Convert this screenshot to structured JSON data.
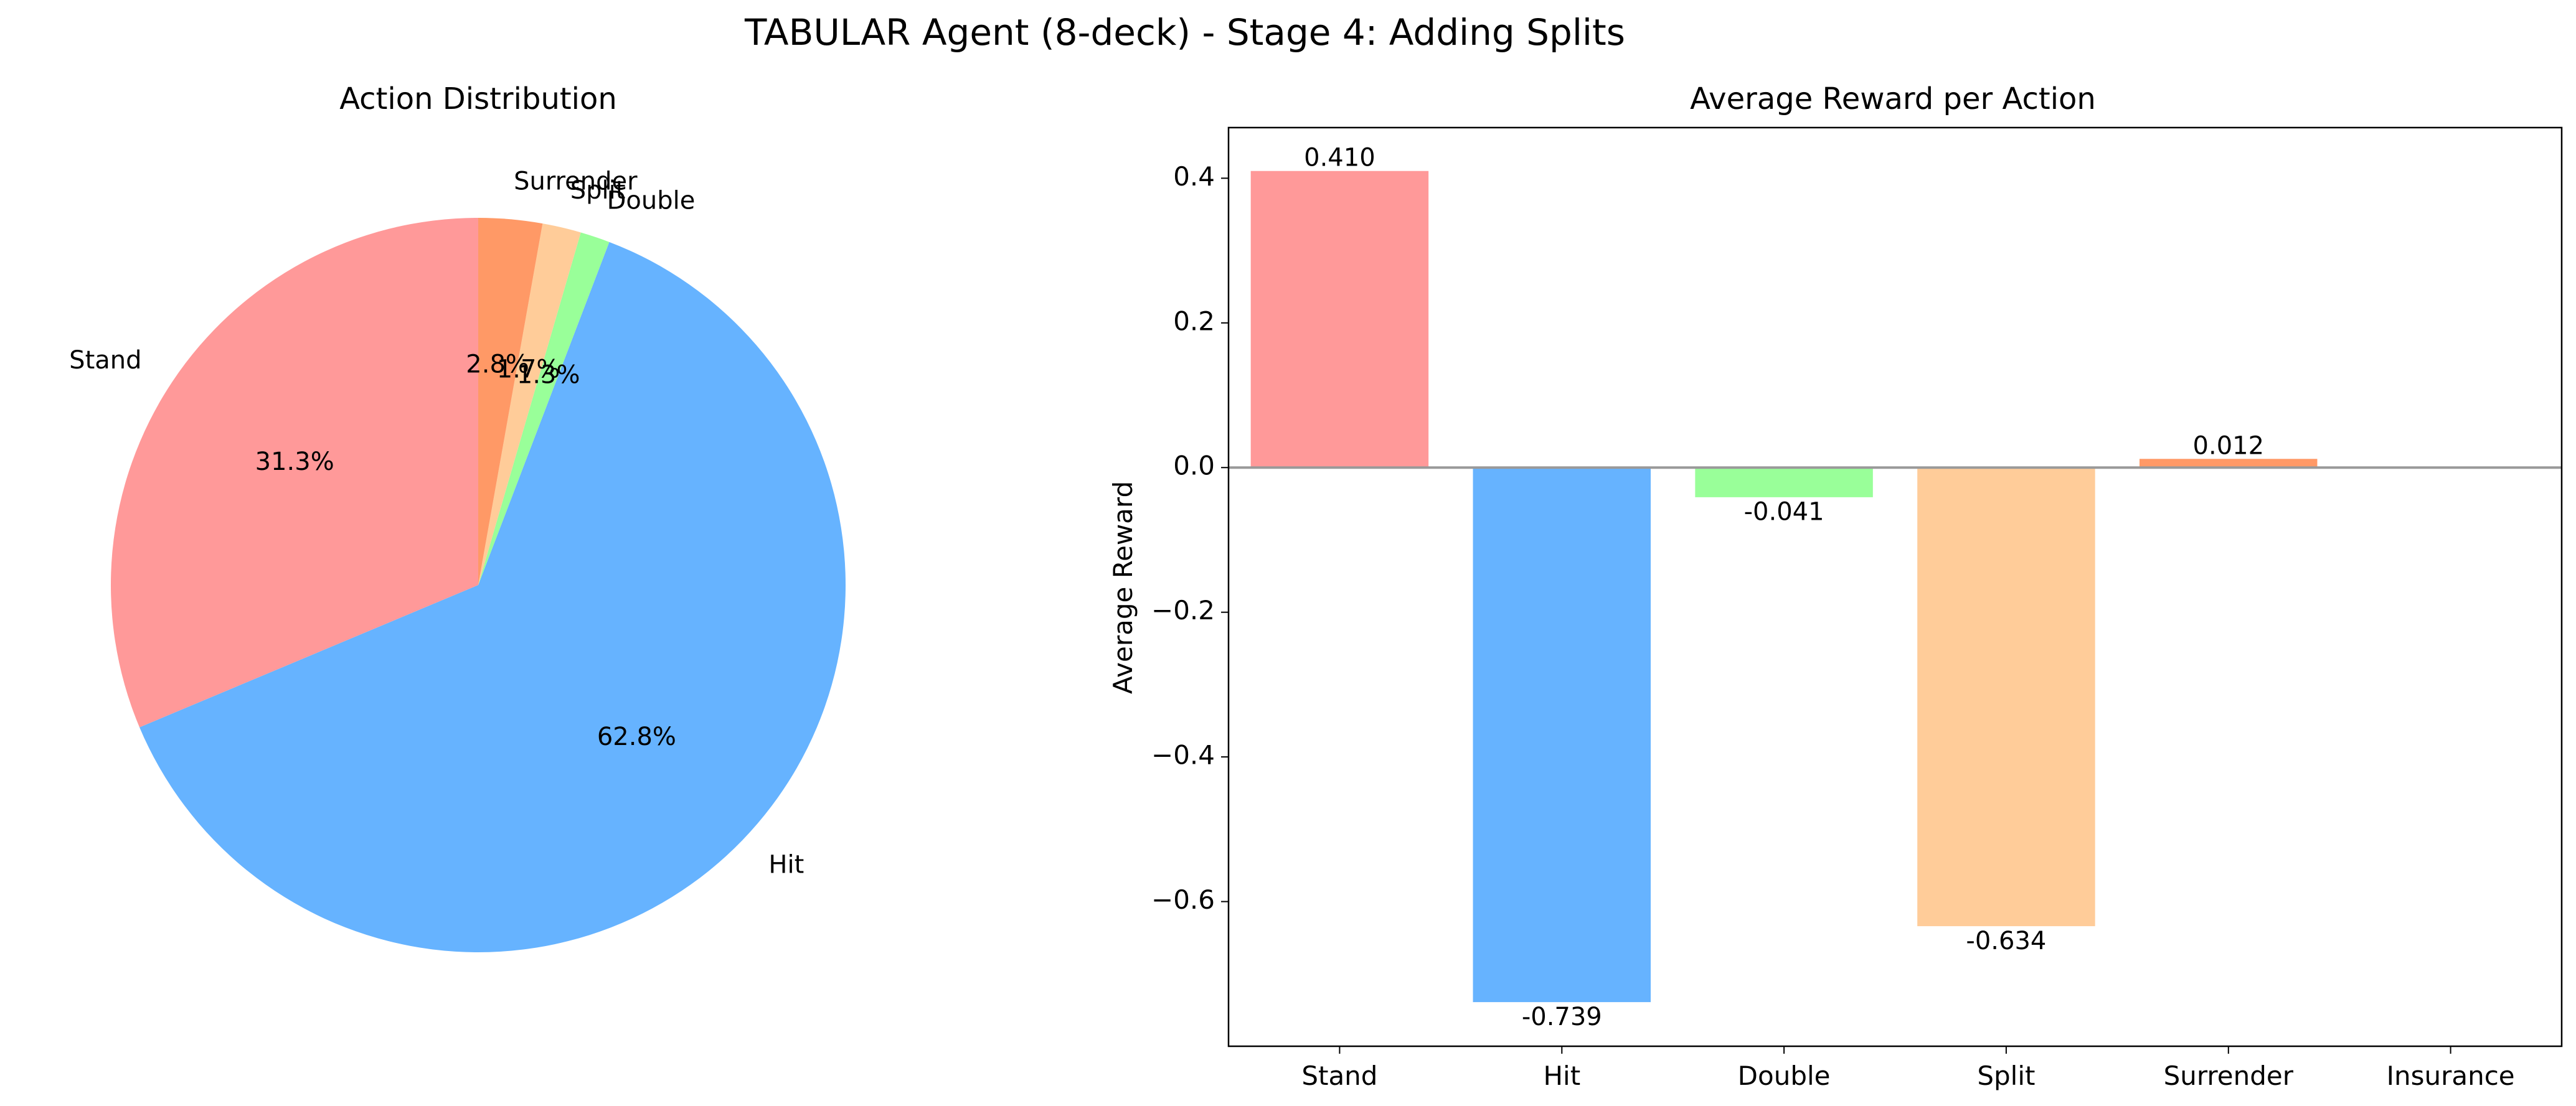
{
  "figure": {
    "title": "TABULAR Agent (8-deck) - Stage 4: Adding Splits"
  },
  "chart_data": [
    {
      "type": "pie",
      "title": "Action Distribution",
      "start_angle_deg": 90,
      "direction": "counterclockwise",
      "slices": [
        {
          "label": "Stand",
          "value": 31.3,
          "pct_label": "31.3%",
          "color": "#ff9999"
        },
        {
          "label": "Hit",
          "value": 62.8,
          "pct_label": "62.8%",
          "color": "#66b3ff"
        },
        {
          "label": "Double",
          "value": 1.3,
          "pct_label": "1.3%",
          "color": "#99ff99"
        },
        {
          "label": "Split",
          "value": 1.7,
          "pct_label": "1.7%",
          "color": "#ffcc99"
        },
        {
          "label": "Surrender",
          "value": 2.8,
          "pct_label": "2.8%",
          "color": "#ff9966"
        }
      ]
    },
    {
      "type": "bar",
      "title": "Average Reward per Action",
      "xlabel": "",
      "ylabel": "Average Reward",
      "categories": [
        "Stand",
        "Hit",
        "Double",
        "Split",
        "Surrender",
        "Insurance"
      ],
      "values": [
        0.41,
        -0.739,
        -0.041,
        -0.634,
        0.012,
        null
      ],
      "value_labels": [
        "0.410",
        "-0.739",
        "-0.041",
        "-0.634",
        "0.012",
        ""
      ],
      "colors": [
        "#ff9999",
        "#66b3ff",
        "#99ff99",
        "#ffcc99",
        "#ff9966",
        "#ffffff"
      ],
      "ylim": [
        -0.8,
        0.47
      ],
      "yticks": [
        0.4,
        0.2,
        0.0,
        -0.2,
        -0.4,
        -0.6
      ],
      "ytick_labels": [
        "0.4",
        "0.2",
        "0.0",
        "−0.2",
        "−0.4",
        "−0.6"
      ],
      "zero_line": true,
      "zero_line_color": "#999999",
      "grid": false
    }
  ]
}
